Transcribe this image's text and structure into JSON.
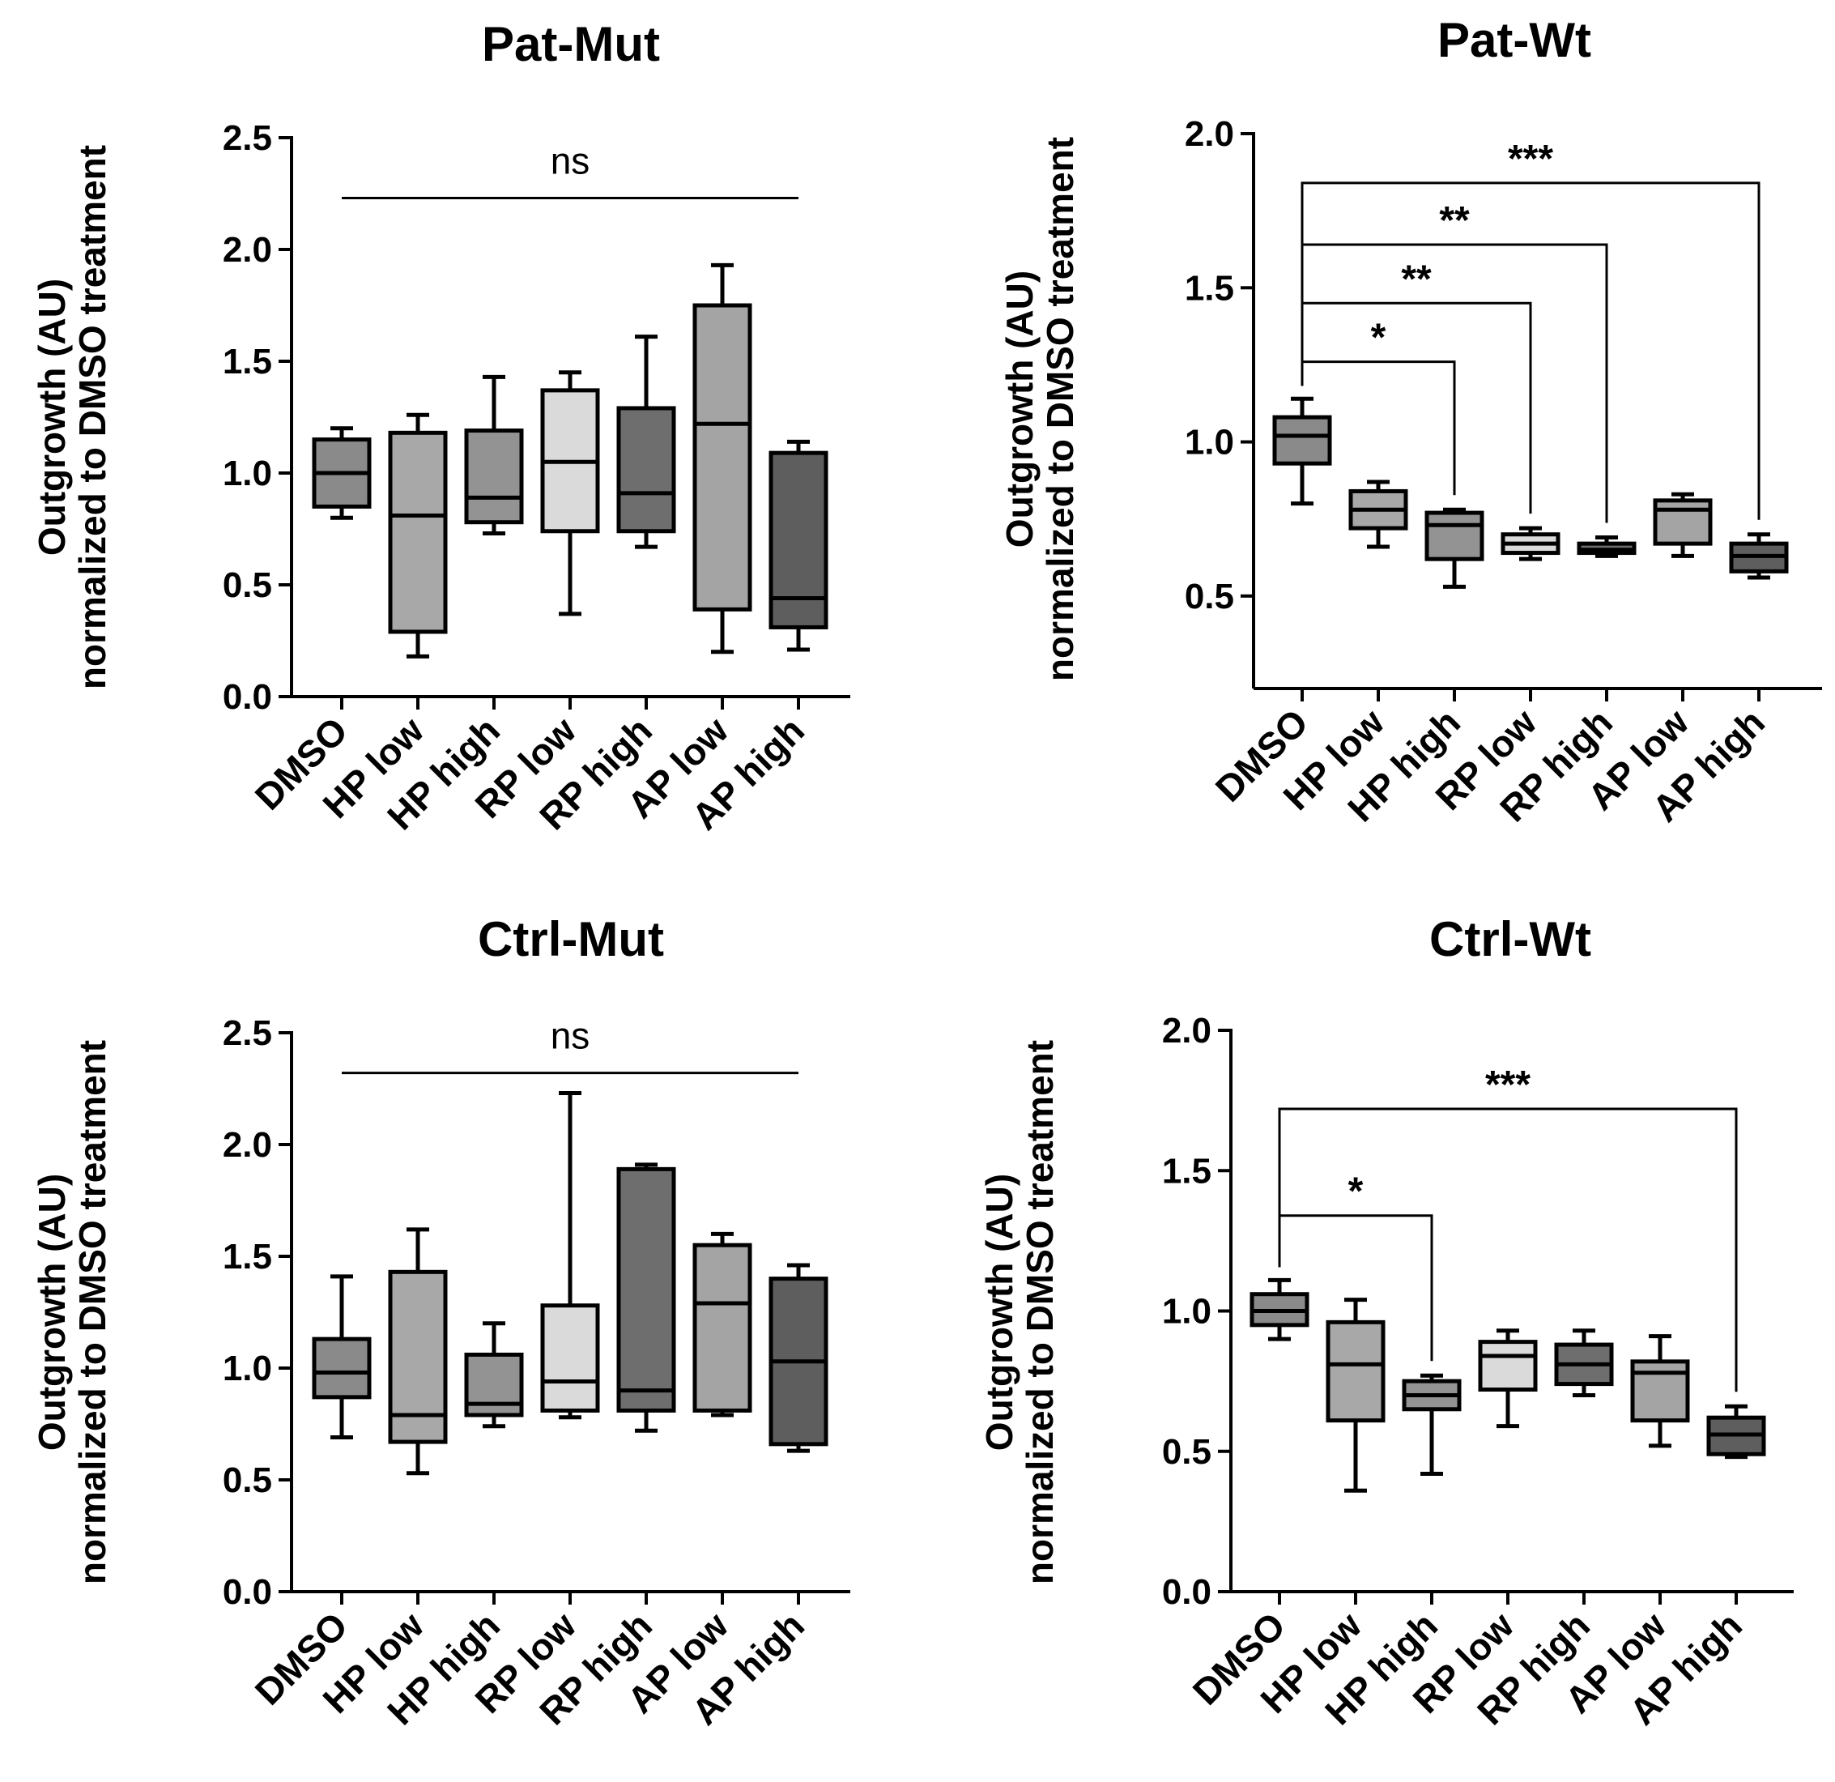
{
  "chart_data": [
    {
      "type": "box",
      "title": "Pat-Mut",
      "ylabel_line1": "Outgrowth (AU)",
      "ylabel_line2": "normalized to DMSO treatment",
      "ylim": [
        0,
        2.5
      ],
      "yticks": [
        "0.0",
        "0.5",
        "1.0",
        "1.5",
        "2.0",
        "2.5"
      ],
      "categories": [
        "DMSO",
        "HP low",
        "HP high",
        "RP low",
        "RP high",
        "AP low",
        "AP high"
      ],
      "box_colors": [
        "#8a8a8a",
        "#a8a8a8",
        "#939393",
        "#dadada",
        "#6e6e6e",
        "#a4a4a4",
        "#5e5e5e"
      ],
      "boxes": [
        {
          "min": 0.8,
          "q1": 0.85,
          "median": 1.0,
          "q3": 1.15,
          "max": 1.2
        },
        {
          "min": 0.18,
          "q1": 0.29,
          "median": 0.81,
          "q3": 1.18,
          "max": 1.26
        },
        {
          "min": 0.73,
          "q1": 0.78,
          "median": 0.89,
          "q3": 1.19,
          "max": 1.43
        },
        {
          "min": 0.37,
          "q1": 0.74,
          "median": 1.05,
          "q3": 1.37,
          "max": 1.45
        },
        {
          "min": 0.67,
          "q1": 0.74,
          "median": 0.91,
          "q3": 1.29,
          "max": 1.61
        },
        {
          "min": 0.2,
          "q1": 0.39,
          "median": 1.22,
          "q3": 1.75,
          "max": 1.93
        },
        {
          "min": 0.21,
          "q1": 0.31,
          "median": 0.44,
          "q3": 1.09,
          "max": 1.14
        }
      ],
      "significance": [
        {
          "type": "line",
          "from": 0,
          "to": 6,
          "y": 2.23,
          "label": "ns"
        }
      ]
    },
    {
      "type": "box",
      "title": "Pat-Wt",
      "ylabel_line1": "Outgrowth (AU)",
      "ylabel_line2": "normalized to DMSO treatment",
      "ylim": [
        0.2,
        2.0
      ],
      "yticks": [
        "0.5",
        "1.0",
        "1.5",
        "2.0"
      ],
      "categories": [
        "DMSO",
        "HP low",
        "HP high",
        "RP low",
        "RP high",
        "AP low",
        "AP high"
      ],
      "box_colors": [
        "#8a8a8a",
        "#a8a8a8",
        "#939393",
        "#dadada",
        "#6e6e6e",
        "#a4a4a4",
        "#5e5e5e"
      ],
      "boxes": [
        {
          "min": 0.8,
          "q1": 0.93,
          "median": 1.02,
          "q3": 1.08,
          "max": 1.14
        },
        {
          "min": 0.66,
          "q1": 0.72,
          "median": 0.78,
          "q3": 0.84,
          "max": 0.87
        },
        {
          "min": 0.53,
          "q1": 0.62,
          "median": 0.73,
          "q3": 0.77,
          "max": 0.78
        },
        {
          "min": 0.62,
          "q1": 0.64,
          "median": 0.67,
          "q3": 0.7,
          "max": 0.72
        },
        {
          "min": 0.63,
          "q1": 0.64,
          "median": 0.65,
          "q3": 0.67,
          "max": 0.69
        },
        {
          "min": 0.63,
          "q1": 0.67,
          "median": 0.78,
          "q3": 0.81,
          "max": 0.83
        },
        {
          "min": 0.56,
          "q1": 0.58,
          "median": 0.63,
          "q3": 0.67,
          "max": 0.7
        }
      ],
      "significance": [
        {
          "type": "bracket",
          "from": 0,
          "to": 2,
          "y": 1.26,
          "label": "*"
        },
        {
          "type": "bracket",
          "from": 0,
          "to": 3,
          "y": 1.45,
          "label": "**"
        },
        {
          "type": "bracket",
          "from": 0,
          "to": 4,
          "y": 1.64,
          "label": "**"
        },
        {
          "type": "bracket",
          "from": 0,
          "to": 6,
          "y": 1.84,
          "label": "***"
        }
      ]
    },
    {
      "type": "box",
      "title": "Ctrl-Mut",
      "ylabel_line1": "Outgrowth (AU)",
      "ylabel_line2": "normalized to DMSO treatment",
      "ylim": [
        0,
        2.5
      ],
      "yticks": [
        "0.0",
        "0.5",
        "1.0",
        "1.5",
        "2.0",
        "2.5"
      ],
      "categories": [
        "DMSO",
        "HP low",
        "HP high",
        "RP low",
        "RP high",
        "AP low",
        "AP high"
      ],
      "box_colors": [
        "#8a8a8a",
        "#a8a8a8",
        "#939393",
        "#dadada",
        "#6e6e6e",
        "#a4a4a4",
        "#5e5e5e"
      ],
      "boxes": [
        {
          "min": 0.69,
          "q1": 0.87,
          "median": 0.98,
          "q3": 1.13,
          "max": 1.41
        },
        {
          "min": 0.53,
          "q1": 0.67,
          "median": 0.79,
          "q3": 1.43,
          "max": 1.62
        },
        {
          "min": 0.74,
          "q1": 0.79,
          "median": 0.84,
          "q3": 1.06,
          "max": 1.2
        },
        {
          "min": 0.78,
          "q1": 0.81,
          "median": 0.94,
          "q3": 1.28,
          "max": 2.23
        },
        {
          "min": 0.72,
          "q1": 0.81,
          "median": 0.9,
          "q3": 1.89,
          "max": 1.91
        },
        {
          "min": 0.79,
          "q1": 0.81,
          "median": 1.29,
          "q3": 1.55,
          "max": 1.6
        },
        {
          "min": 0.63,
          "q1": 0.66,
          "median": 1.03,
          "q3": 1.4,
          "max": 1.46
        }
      ],
      "significance": [
        {
          "type": "line",
          "from": 0,
          "to": 6,
          "y": 2.32,
          "label": "ns"
        }
      ]
    },
    {
      "type": "box",
      "title": "Ctrl-Wt",
      "ylabel_line1": "Outgrowth (AU)",
      "ylabel_line2": "normalized to DMSO treatment",
      "ylim": [
        0,
        2.0
      ],
      "yticks": [
        "0.0",
        "0.5",
        "1.0",
        "1.5",
        "2.0"
      ],
      "categories": [
        "DMSO",
        "HP low",
        "HP high",
        "RP low",
        "RP high",
        "AP low",
        "AP high"
      ],
      "box_colors": [
        "#8a8a8a",
        "#a8a8a8",
        "#939393",
        "#dadada",
        "#6e6e6e",
        "#a4a4a4",
        "#5e5e5e"
      ],
      "boxes": [
        {
          "min": 0.9,
          "q1": 0.95,
          "median": 1.0,
          "q3": 1.06,
          "max": 1.11
        },
        {
          "min": 0.36,
          "q1": 0.61,
          "median": 0.81,
          "q3": 0.96,
          "max": 1.04
        },
        {
          "min": 0.42,
          "q1": 0.65,
          "median": 0.7,
          "q3": 0.75,
          "max": 0.77
        },
        {
          "min": 0.59,
          "q1": 0.72,
          "median": 0.84,
          "q3": 0.89,
          "max": 0.93
        },
        {
          "min": 0.7,
          "q1": 0.74,
          "median": 0.81,
          "q3": 0.88,
          "max": 0.93
        },
        {
          "min": 0.52,
          "q1": 0.61,
          "median": 0.78,
          "q3": 0.82,
          "max": 0.91
        },
        {
          "min": 0.48,
          "q1": 0.49,
          "median": 0.56,
          "q3": 0.62,
          "max": 0.66
        }
      ],
      "significance": [
        {
          "type": "bracket",
          "from": 0,
          "to": 2,
          "y": 1.34,
          "label": "*"
        },
        {
          "type": "bracket",
          "from": 0,
          "to": 6,
          "y": 1.72,
          "label": "***"
        }
      ]
    }
  ]
}
